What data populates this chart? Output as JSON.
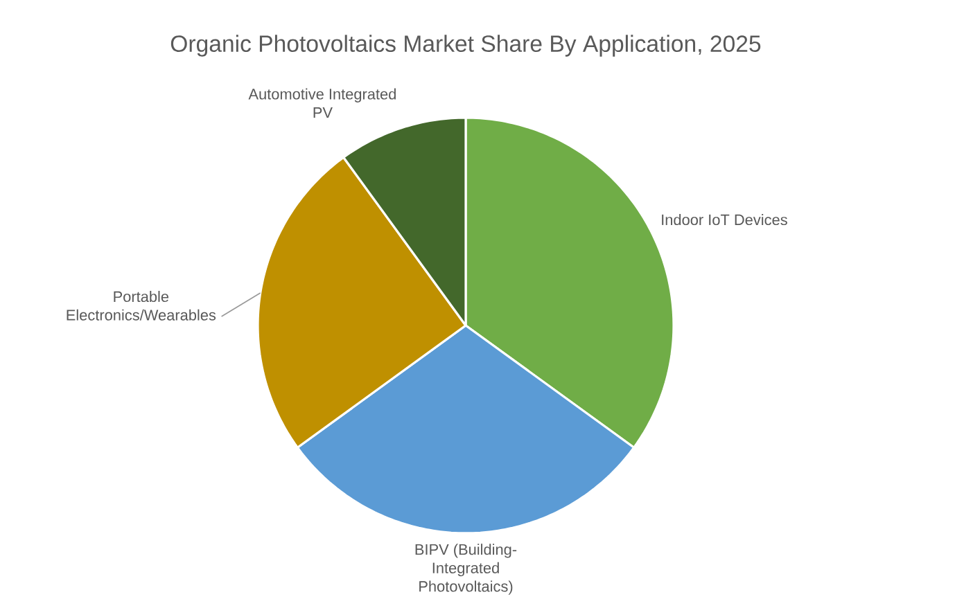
{
  "chart_data": {
    "type": "pie",
    "title": "Organic Photovoltaics Market Share By Application, 2025",
    "categories": [
      "Indoor IoT Devices",
      "BIPV (Building-Integrated Photovoltaics)",
      "Portable Electronics/Wearables",
      "Automotive Integrated PV"
    ],
    "values": [
      35,
      30,
      25,
      10
    ],
    "colors": [
      "#70ad47",
      "#5b9bd5",
      "#bf9000",
      "#43682b"
    ]
  }
}
